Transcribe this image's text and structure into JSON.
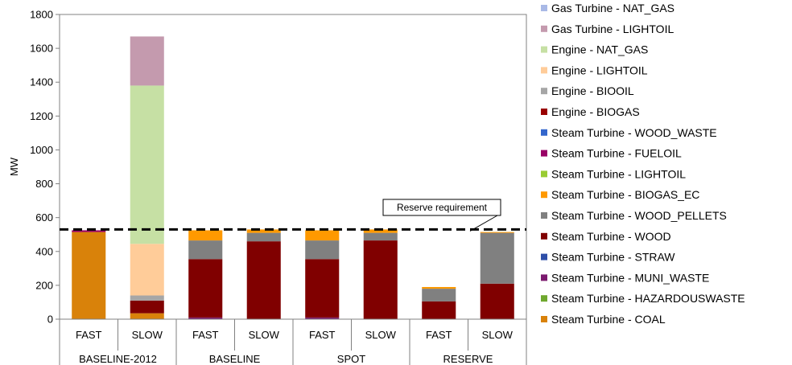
{
  "chart_data": {
    "type": "bar",
    "stacked": true,
    "ylabel": "MW",
    "ylim": [
      0,
      1800
    ],
    "yticks": [
      0,
      200,
      400,
      600,
      800,
      1000,
      1200,
      1400,
      1600,
      1800
    ],
    "grid": false,
    "legend_position": "right",
    "categories": [
      "FAST",
      "SLOW",
      "FAST",
      "SLOW",
      "FAST",
      "SLOW",
      "FAST",
      "SLOW"
    ],
    "groups": [
      {
        "label": "BASELINE-2012",
        "span": [
          0,
          1
        ]
      },
      {
        "label": "BASELINE",
        "span": [
          2,
          3
        ]
      },
      {
        "label": "SPOT",
        "span": [
          4,
          5
        ]
      },
      {
        "label": "RESERVE",
        "span": [
          6,
          7
        ]
      }
    ],
    "series": [
      {
        "name": "Steam Turbine - COAL",
        "color": "#D9820A",
        "values": [
          515,
          35,
          0,
          0,
          0,
          0,
          0,
          0
        ]
      },
      {
        "name": "Steam Turbine - HAZARDOUSWASTE",
        "color": "#6FA82E",
        "values": [
          0,
          0,
          0,
          0,
          0,
          0,
          0,
          0
        ]
      },
      {
        "name": "Steam Turbine - MUNI_WASTE",
        "color": "#7B1A6E",
        "values": [
          0,
          0,
          10,
          0,
          10,
          0,
          0,
          0
        ]
      },
      {
        "name": "Steam Turbine - STRAW",
        "color": "#2E4FA8",
        "values": [
          0,
          0,
          0,
          0,
          0,
          0,
          0,
          0
        ]
      },
      {
        "name": "Steam Turbine - WOOD",
        "color": "#800000",
        "values": [
          0,
          75,
          345,
          460,
          345,
          465,
          105,
          210
        ]
      },
      {
        "name": "Steam Turbine - WOOD_PELLETS",
        "color": "#808080",
        "values": [
          0,
          0,
          110,
          50,
          110,
          45,
          75,
          300
        ]
      },
      {
        "name": "Steam Turbine - BIOGAS_EC",
        "color": "#FF9900",
        "values": [
          0,
          0,
          60,
          20,
          60,
          20,
          10,
          5
        ]
      },
      {
        "name": "Steam Turbine - LIGHTOIL",
        "color": "#99CC33",
        "values": [
          0,
          0,
          0,
          0,
          0,
          0,
          0,
          0
        ]
      },
      {
        "name": "Steam Turbine - FUELOIL",
        "color": "#990066",
        "values": [
          10,
          0,
          0,
          0,
          0,
          0,
          0,
          0
        ]
      },
      {
        "name": "Steam Turbine - WOOD_WASTE",
        "color": "#3366CC",
        "values": [
          0,
          0,
          0,
          0,
          0,
          0,
          0,
          0
        ]
      },
      {
        "name": "Engine - BIOGAS",
        "color": "#990000",
        "values": [
          0,
          0,
          0,
          0,
          0,
          0,
          0,
          0
        ]
      },
      {
        "name": "Engine - BIOOIL",
        "color": "#A6A6A6",
        "values": [
          0,
          30,
          0,
          0,
          0,
          0,
          0,
          0
        ]
      },
      {
        "name": "Engine - LIGHTOIL",
        "color": "#FFCC99",
        "values": [
          0,
          305,
          0,
          0,
          0,
          0,
          0,
          0
        ]
      },
      {
        "name": "Engine - NAT_GAS",
        "color": "#C6E0A4",
        "values": [
          0,
          935,
          0,
          0,
          0,
          0,
          0,
          0
        ]
      },
      {
        "name": "Gas Turbine - LIGHTOIL",
        "color": "#C49AAE",
        "values": [
          0,
          290,
          0,
          0,
          0,
          0,
          0,
          0
        ]
      },
      {
        "name": "Gas Turbine - NAT_GAS",
        "color": "#A9B9E6",
        "values": [
          0,
          0,
          0,
          0,
          0,
          0,
          0,
          0
        ]
      }
    ],
    "reserve_requirement": {
      "label": "Reserve requirement",
      "value": 530
    }
  }
}
